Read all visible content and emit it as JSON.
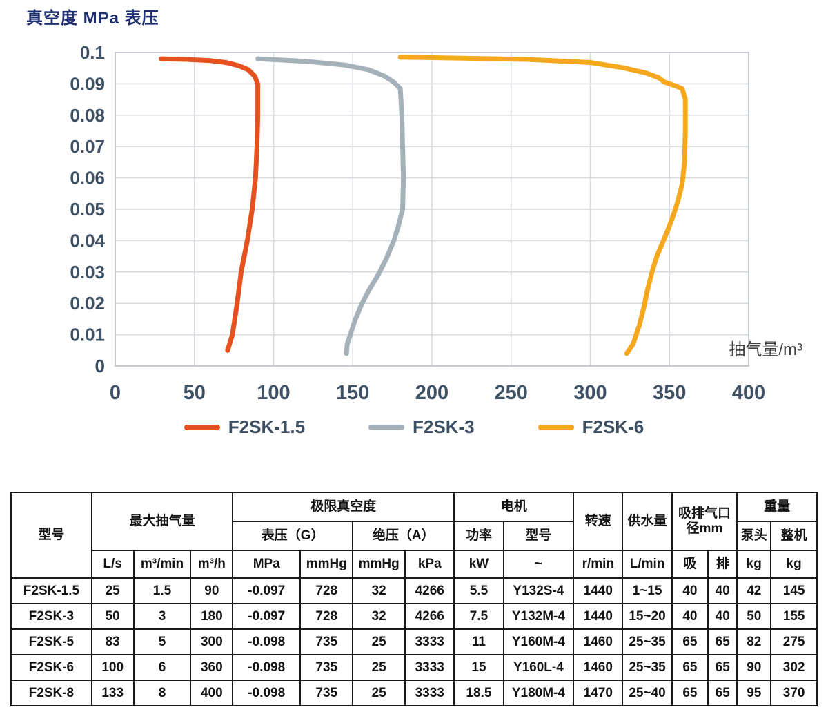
{
  "chart_data": {
    "type": "line",
    "title": "真空度 MPa 表压",
    "xlabel": "抽气量/m³",
    "ylabel": "真空度 MPa 表压",
    "xlim": [
      0,
      400
    ],
    "ylim": [
      0,
      0.1
    ],
    "x_ticks": [
      0,
      50,
      100,
      150,
      200,
      250,
      300,
      350,
      400
    ],
    "x_tick_labels": [
      "0",
      "50",
      "100",
      "150",
      "200",
      "250",
      "300",
      "350",
      "400"
    ],
    "y_ticks": [
      0,
      0.01,
      0.02,
      0.03,
      0.04,
      0.05,
      0.06,
      0.07,
      0.08,
      0.09,
      0.1
    ],
    "y_tick_labels": [
      "0",
      "0.01",
      "0.02",
      "0.03",
      "0.04",
      "0.05",
      "0.06",
      "0.07",
      "0.08",
      "0.09",
      "0.1"
    ],
    "grid": true,
    "legend_position": "bottom",
    "colors": {
      "title": "#1F2E6E",
      "tick_label": "#3E5064",
      "grid": "#D6DADF",
      "plot_border": "#C6CCD2",
      "axis_unit_label": "#3F3F3F"
    },
    "series": [
      {
        "name": "F2SK-1.5",
        "color": "#E5511F",
        "points": [
          [
            29,
            0.098
          ],
          [
            45,
            0.0978
          ],
          [
            60,
            0.0974
          ],
          [
            70,
            0.0968
          ],
          [
            78,
            0.0958
          ],
          [
            84,
            0.0945
          ],
          [
            88,
            0.0925
          ],
          [
            90,
            0.09
          ],
          [
            90,
            0.08
          ],
          [
            89.5,
            0.07
          ],
          [
            88.6,
            0.06
          ],
          [
            86.5,
            0.05
          ],
          [
            83.4,
            0.04
          ],
          [
            79.5,
            0.03
          ],
          [
            77,
            0.02
          ],
          [
            74,
            0.01
          ],
          [
            71,
            0.005
          ]
        ]
      },
      {
        "name": "F2SK-3",
        "color": "#A4B1B9",
        "points": [
          [
            90,
            0.098
          ],
          [
            120,
            0.0972
          ],
          [
            145,
            0.096
          ],
          [
            160,
            0.0945
          ],
          [
            170,
            0.0925
          ],
          [
            176,
            0.0905
          ],
          [
            180,
            0.0885
          ],
          [
            181,
            0.08
          ],
          [
            181.5,
            0.07
          ],
          [
            182,
            0.06
          ],
          [
            181.5,
            0.05
          ],
          [
            179,
            0.045
          ],
          [
            176,
            0.04
          ],
          [
            171,
            0.034
          ],
          [
            166,
            0.029
          ],
          [
            160,
            0.024
          ],
          [
            155,
            0.019
          ],
          [
            151,
            0.014
          ],
          [
            148.5,
            0.01
          ],
          [
            146.5,
            0.007
          ],
          [
            146,
            0.004
          ]
        ]
      },
      {
        "name": "F2SK-6",
        "color": "#F5A71E",
        "points": [
          [
            180,
            0.0985
          ],
          [
            220,
            0.0982
          ],
          [
            260,
            0.0978
          ],
          [
            300,
            0.0968
          ],
          [
            320,
            0.0952
          ],
          [
            335,
            0.0935
          ],
          [
            343,
            0.092
          ],
          [
            347,
            0.0905
          ],
          [
            353,
            0.0895
          ],
          [
            358,
            0.0885
          ],
          [
            360,
            0.085
          ],
          [
            360,
            0.075
          ],
          [
            359.5,
            0.065
          ],
          [
            358,
            0.058
          ],
          [
            355,
            0.052
          ],
          [
            351,
            0.046
          ],
          [
            347,
            0.041
          ],
          [
            342,
            0.035
          ],
          [
            339,
            0.03
          ],
          [
            336,
            0.024
          ],
          [
            334,
            0.019
          ],
          [
            331,
            0.013
          ],
          [
            327,
            0.007
          ],
          [
            323,
            0.004
          ]
        ]
      }
    ]
  },
  "table": {
    "header_rows": [
      [
        {
          "t": "型号",
          "rs": 3
        },
        {
          "t": "最大抽气量",
          "cs": 3,
          "rs": 2
        },
        {
          "t": "极限真空度",
          "cs": 4
        },
        {
          "t": "电机",
          "cs": 2
        },
        {
          "t": "转速",
          "rs": 2
        },
        {
          "t": "供水量",
          "rs": 2
        },
        {
          "t": "吸排气口径mm",
          "cs": 2,
          "rs": 2
        },
        {
          "t": "重量",
          "cs": 2
        }
      ],
      [
        {
          "t": "表压（G）",
          "cs": 2
        },
        {
          "t": "绝压（A）",
          "cs": 2
        },
        {
          "t": "功率"
        },
        {
          "t": "型号"
        },
        {
          "t": "泵头"
        },
        {
          "t": "整机"
        }
      ],
      [
        {
          "t": "L/s"
        },
        {
          "t": "m³/min"
        },
        {
          "t": "m³/h"
        },
        {
          "t": "MPa"
        },
        {
          "t": "mmHg"
        },
        {
          "t": "mmHg"
        },
        {
          "t": "kPa"
        },
        {
          "t": "kW"
        },
        {
          "t": "~"
        },
        {
          "t": "r/min"
        },
        {
          "t": "L/min"
        },
        {
          "t": "吸"
        },
        {
          "t": "排"
        },
        {
          "t": "kg"
        },
        {
          "t": "kg"
        }
      ]
    ],
    "col_widths": [
      "10%",
      "5.2%",
      "7.1%",
      "5.2%",
      "8.4%",
      "6.5%",
      "6.5%",
      "6.1%",
      "6.1%",
      "8.7%",
      "6.1%",
      "6.1%",
      "4.5%",
      "3.6%",
      "4.2%",
      "5.7%"
    ],
    "rows": [
      [
        "F2SK-1.5",
        "25",
        "1.5",
        "90",
        "-0.097",
        "728",
        "32",
        "4266",
        "5.5",
        "Y132S-4",
        "1440",
        "1~15",
        "40",
        "40",
        "42",
        "145"
      ],
      [
        "F2SK-3",
        "50",
        "3",
        "180",
        "-0.097",
        "728",
        "32",
        "4266",
        "7.5",
        "Y132M-4",
        "1440",
        "15~20",
        "40",
        "40",
        "50",
        "155"
      ],
      [
        "F2SK-5",
        "83",
        "5",
        "300",
        "-0.098",
        "735",
        "25",
        "3333",
        "11",
        "Y160M-4",
        "1460",
        "25~35",
        "65",
        "65",
        "82",
        "275"
      ],
      [
        "F2SK-6",
        "100",
        "6",
        "360",
        "-0.098",
        "735",
        "25",
        "3333",
        "15",
        "Y160L-4",
        "1460",
        "25~35",
        "65",
        "65",
        "90",
        "302"
      ],
      [
        "F2SK-8",
        "133",
        "8",
        "400",
        "-0.098",
        "735",
        "25",
        "3333",
        "18.5",
        "Y180M-4",
        "1470",
        "25~40",
        "65",
        "65",
        "95",
        "370"
      ]
    ]
  }
}
